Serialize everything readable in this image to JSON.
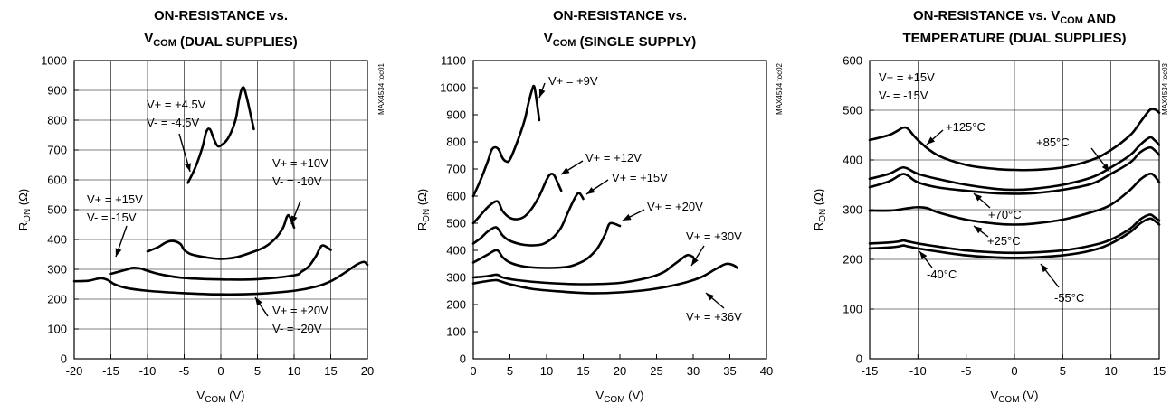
{
  "chart_data": [
    {
      "type": "line",
      "title_lines": [
        "ON-RESISTANCE vs.",
        "V_COM (DUAL SUPPLIES)"
      ],
      "xlabel": "VCOM (V)",
      "ylabel": "RON (Ω)",
      "code": "MAX4534 toc01",
      "xlim": [
        -20,
        20
      ],
      "ylim": [
        0,
        1000
      ],
      "xticks": [
        "-20",
        "-15",
        "-10",
        "-5",
        "0",
        "5",
        "10",
        "15",
        "20"
      ],
      "yticks": [
        "0",
        "100",
        "200",
        "300",
        "400",
        "500",
        "600",
        "700",
        "800",
        "900",
        "1000"
      ],
      "grid": true,
      "series": [
        {
          "name": "V+ = +4.5V, V- = -4.5V",
          "x": [
            -4.5,
            -3.5,
            -2.5,
            -2,
            -1.5,
            -1,
            -0.5,
            0,
            1,
            2,
            2.5,
            3,
            3.5,
            4.5
          ],
          "y": [
            590,
            640,
            710,
            760,
            770,
            740,
            715,
            715,
            740,
            800,
            870,
            910,
            880,
            770
          ]
        },
        {
          "name": "V+ = +10V, V- = -10V",
          "x": [
            -10,
            -8.5,
            -7.5,
            -6.5,
            -5.5,
            -5,
            -4,
            -2,
            0,
            2,
            4,
            6,
            7.5,
            8.5,
            9,
            9.3,
            9.7,
            10
          ],
          "y": [
            360,
            375,
            390,
            395,
            385,
            365,
            350,
            340,
            335,
            340,
            355,
            375,
            405,
            440,
            475,
            480,
            460,
            440
          ]
        },
        {
          "name": "V+ = +15V, V- = -15V",
          "x": [
            -15,
            -13,
            -12,
            -11,
            -10,
            -8,
            -5,
            0,
            5,
            10,
            11,
            12,
            13,
            13.5,
            14,
            15
          ],
          "y": [
            285,
            298,
            305,
            303,
            295,
            282,
            271,
            266,
            267,
            280,
            292,
            310,
            345,
            370,
            380,
            365
          ]
        },
        {
          "name": "V+ = +20V, V- = -20V",
          "x": [
            -20,
            -18,
            -16.5,
            -15.5,
            -14.5,
            -13,
            -10,
            -5,
            0,
            5,
            10,
            13,
            15,
            17,
            18.5,
            19.5,
            20
          ],
          "y": [
            260,
            262,
            270,
            265,
            250,
            238,
            228,
            220,
            216,
            218,
            228,
            242,
            260,
            290,
            315,
            325,
            315
          ]
        }
      ],
      "annotations": [
        {
          "lines": [
            "V+ = +4.5V",
            "V- = -4.5V"
          ]
        },
        {
          "lines": [
            "V+ = +10V",
            "V- = -10V"
          ]
        },
        {
          "lines": [
            "V+ = +15V",
            "V- = -15V"
          ]
        },
        {
          "lines": [
            "V+ = +20V",
            "V- = -20V"
          ]
        }
      ]
    },
    {
      "type": "line",
      "title_lines": [
        "ON-RESISTANCE vs.",
        "V_COM (SINGLE SUPPLY)"
      ],
      "xlabel": "VCOM (V)",
      "ylabel": "RON (Ω)",
      "code": "MAX4534 toc02",
      "xlim": [
        0,
        40
      ],
      "ylim": [
        0,
        1100
      ],
      "xticks": [
        "0",
        "5",
        "10",
        "15",
        "20",
        "25",
        "30",
        "35",
        "40"
      ],
      "yticks": [
        "0",
        "100",
        "200",
        "300",
        "400",
        "500",
        "600",
        "700",
        "800",
        "900",
        "1000",
        "1100"
      ],
      "grid": false,
      "series": [
        {
          "name": "V+ = +9V",
          "x": [
            0,
            1,
            2,
            2.5,
            3,
            3.5,
            4,
            4.5,
            5,
            6,
            7,
            7.5,
            8,
            8.3,
            8.6,
            9
          ],
          "y": [
            600,
            660,
            730,
            770,
            780,
            770,
            740,
            728,
            735,
            800,
            880,
            940,
            990,
            1005,
            960,
            880
          ]
        },
        {
          "name": "V+ = +12V",
          "x": [
            0,
            1,
            2,
            3,
            3.5,
            4,
            5,
            6,
            7,
            8,
            9,
            10,
            10.5,
            11,
            11.5,
            12
          ],
          "y": [
            500,
            530,
            560,
            580,
            575,
            545,
            520,
            515,
            525,
            555,
            600,
            660,
            680,
            678,
            650,
            620
          ]
        },
        {
          "name": "V+ = +15V",
          "x": [
            0,
            1,
            2,
            3,
            3.5,
            4,
            5,
            7,
            9,
            10,
            11,
            12,
            13,
            14,
            14.5,
            15
          ],
          "y": [
            425,
            445,
            470,
            485,
            475,
            455,
            435,
            420,
            420,
            430,
            450,
            485,
            545,
            600,
            610,
            590
          ]
        },
        {
          "name": "V+ = +20V",
          "x": [
            0,
            1,
            2,
            3,
            3.5,
            4,
            5,
            7,
            10,
            13,
            15,
            16,
            17,
            18,
            18.5,
            19,
            20
          ],
          "y": [
            355,
            370,
            385,
            400,
            395,
            375,
            355,
            340,
            335,
            340,
            360,
            380,
            410,
            460,
            495,
            500,
            490
          ]
        },
        {
          "name": "V+ = +30V",
          "x": [
            0,
            2,
            3,
            3.5,
            4,
            6,
            10,
            15,
            20,
            24,
            26,
            27,
            28,
            29,
            29.5,
            30
          ],
          "y": [
            300,
            305,
            310,
            308,
            300,
            290,
            280,
            275,
            280,
            300,
            320,
            340,
            360,
            380,
            382,
            375
          ]
        },
        {
          "name": "V+ = +36V",
          "x": [
            0,
            2,
            3,
            3.5,
            5,
            8,
            12,
            16,
            20,
            24,
            28,
            31,
            33,
            34.5,
            35.5,
            36
          ],
          "y": [
            278,
            287,
            290,
            288,
            275,
            258,
            248,
            242,
            245,
            255,
            275,
            300,
            330,
            350,
            345,
            335
          ]
        }
      ],
      "annotations": [
        {
          "lines": [
            "V+ = +9V"
          ]
        },
        {
          "lines": [
            "V+ = +12V"
          ]
        },
        {
          "lines": [
            "V+ = +15V"
          ]
        },
        {
          "lines": [
            "V+ = +20V"
          ]
        },
        {
          "lines": [
            "V+ = +30V"
          ]
        },
        {
          "lines": [
            "V+ = +36V"
          ]
        }
      ]
    },
    {
      "type": "line",
      "title_lines": [
        "ON-RESISTANCE vs. V_COM AND",
        "TEMPERATURE (DUAL SUPPLIES)"
      ],
      "xlabel": "VCOM (V)",
      "ylabel": "RON (Ω)",
      "code": "MAX4534 toc03",
      "xlim": [
        -15,
        15
      ],
      "ylim": [
        0,
        600
      ],
      "xticks": [
        "-15",
        "-10",
        "-5",
        "0",
        "5",
        "10",
        "15"
      ],
      "yticks": [
        "0",
        "100",
        "200",
        "300",
        "400",
        "500",
        "600"
      ],
      "grid": true,
      "series": [
        {
          "name": "+125°C",
          "x": [
            -15,
            -13,
            -12,
            -11.5,
            -11,
            -10,
            -8,
            -5,
            -2,
            0,
            2,
            5,
            8,
            10,
            12,
            13,
            14,
            14.5,
            15
          ],
          "y": [
            440,
            450,
            460,
            465,
            462,
            440,
            410,
            390,
            382,
            380,
            380,
            385,
            400,
            420,
            450,
            475,
            500,
            502,
            495
          ]
        },
        {
          "name": "+85°C",
          "x": [
            -15,
            -13,
            -12,
            -11.5,
            -11,
            -10,
            -8,
            -5,
            -2,
            0,
            2,
            5,
            8,
            10,
            12,
            13,
            14,
            14.5,
            15
          ],
          "y": [
            362,
            372,
            382,
            385,
            382,
            372,
            362,
            350,
            342,
            340,
            342,
            350,
            365,
            385,
            410,
            430,
            445,
            440,
            430
          ]
        },
        {
          "name": "+70°C",
          "x": [
            -15,
            -13,
            -12,
            -11.5,
            -11,
            -10,
            -8,
            -5,
            -2,
            0,
            2,
            5,
            8,
            10,
            12,
            13,
            14,
            14.5,
            15
          ],
          "y": [
            345,
            357,
            368,
            372,
            368,
            355,
            345,
            338,
            333,
            332,
            333,
            340,
            352,
            372,
            395,
            415,
            425,
            420,
            410
          ]
        },
        {
          "name": "+25°C",
          "x": [
            -15,
            -13,
            -12,
            -11,
            -10,
            -9,
            -8,
            -5,
            -2,
            0,
            2,
            5,
            8,
            10,
            12,
            13,
            14,
            14.5,
            15
          ],
          "y": [
            298,
            298,
            300,
            303,
            305,
            303,
            295,
            280,
            272,
            270,
            272,
            280,
            295,
            310,
            340,
            360,
            372,
            368,
            355
          ]
        },
        {
          "name": "-40°C",
          "x": [
            -15,
            -13,
            -12,
            -11.5,
            -11,
            -10,
            -8,
            -5,
            -2,
            0,
            2,
            5,
            8,
            10,
            12,
            13,
            14,
            14.5,
            15
          ],
          "y": [
            232,
            234,
            236,
            238,
            236,
            232,
            226,
            218,
            214,
            213,
            214,
            218,
            228,
            240,
            262,
            280,
            290,
            285,
            278
          ]
        },
        {
          "name": "-55°C",
          "x": [
            -15,
            -13,
            -12,
            -11.5,
            -11,
            -10,
            -8,
            -5,
            -2,
            0,
            2,
            5,
            8,
            10,
            12,
            13,
            14,
            14.5,
            15
          ],
          "y": [
            222,
            224,
            226,
            228,
            226,
            222,
            216,
            208,
            204,
            203,
            204,
            208,
            218,
            232,
            255,
            272,
            282,
            278,
            270
          ]
        }
      ],
      "annotations": [
        {
          "lines": [
            "V+ = +15V",
            "V- = -15V"
          ]
        },
        {
          "lines": [
            "+125°C"
          ]
        },
        {
          "lines": [
            "+85°C"
          ]
        },
        {
          "lines": [
            "+70°C"
          ]
        },
        {
          "lines": [
            "+25°C"
          ]
        },
        {
          "lines": [
            "-40°C"
          ]
        },
        {
          "lines": [
            "-55°C"
          ]
        }
      ]
    }
  ]
}
